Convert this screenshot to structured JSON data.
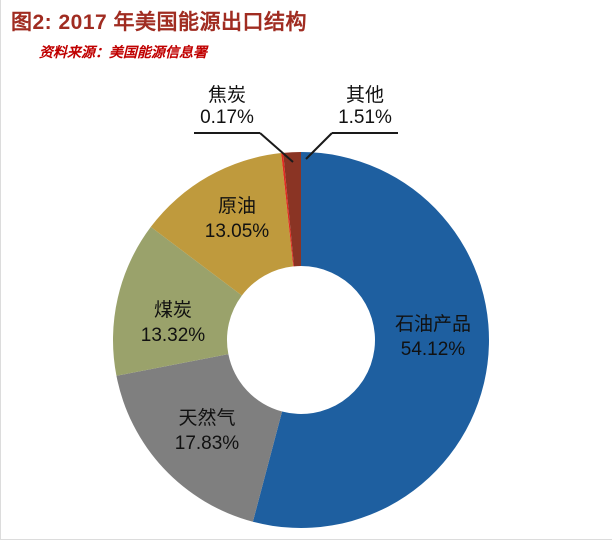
{
  "header": {
    "title": "图2: 2017 年美国能源出口结构",
    "source": "资料来源：美国能源信息署"
  },
  "chart_data": {
    "type": "pie",
    "subtype": "donut",
    "title": "2017 年美国能源出口结构",
    "source": "美国能源信息署",
    "start_angle_deg": 0,
    "direction": "clockwise",
    "unit": "%",
    "categories": [
      "石油产品",
      "天然气",
      "煤炭",
      "原油",
      "焦炭",
      "其他"
    ],
    "values": [
      54.12,
      17.83,
      13.32,
      13.05,
      0.17,
      1.51
    ],
    "colors": [
      "#1e5fa0",
      "#7f7f7f",
      "#9aa26b",
      "#bf9a3d",
      "#e02b20",
      "#8a3424"
    ],
    "legend_position": "none",
    "labels_on_slices": true,
    "slices": [
      {
        "label": "石油产品",
        "pct": "54.12%"
      },
      {
        "label": "天然气",
        "pct": "17.83%"
      },
      {
        "label": "煤炭",
        "pct": "13.32%"
      },
      {
        "label": "原油",
        "pct": "13.05%"
      },
      {
        "label": "焦炭",
        "pct": "0.17%"
      },
      {
        "label": "其他",
        "pct": "1.51%"
      }
    ]
  }
}
